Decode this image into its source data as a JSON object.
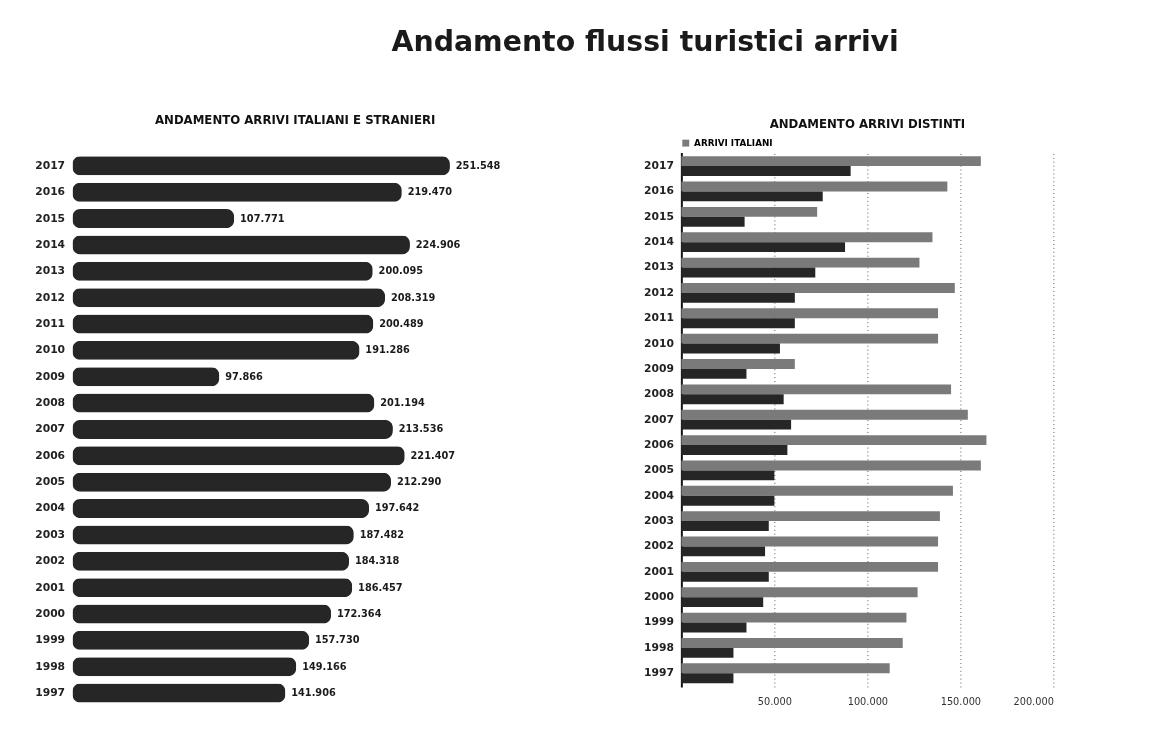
{
  "chart_data": [
    {
      "type": "other",
      "title": "Andamento flussi turistici arrivi"
    },
    {
      "type": "bar",
      "orientation": "horizontal",
      "title": "ANDAMENTO  ARRIVI ITALIANI E STRANIERI",
      "tick_labels": "y",
      "color": "#262626",
      "categories": [
        "2017",
        "2016",
        "2015",
        "2014",
        "2013",
        "2012",
        "2011",
        "2010",
        "2009",
        "2008",
        "2007",
        "2006",
        "2005",
        "2004",
        "2003",
        "2002",
        "2001",
        "2000",
        "1999",
        "1998",
        "1997"
      ],
      "values": [
        251548,
        219470,
        107771,
        224906,
        200095,
        208319,
        200489,
        191286,
        97866,
        201194,
        213536,
        221407,
        212290,
        197642,
        187482,
        184318,
        186457,
        172364,
        157730,
        149166,
        141906
      ],
      "value_labels": [
        "251.548",
        "219.470",
        "107.771",
        "224.906",
        "200.095",
        "208.319",
        "200.489",
        "191.286",
        "97.866",
        "201.194",
        "213.536",
        "221.407",
        "212.290",
        "197.642",
        "187.482",
        "184.318",
        "186.457",
        "172.364",
        "157.730",
        "149.166",
        "141.906"
      ]
    },
    {
      "type": "bar",
      "orientation": "horizontal",
      "title": "ANDAMENTO ARRIVI DISTINTI",
      "legend": "top",
      "grid": "x",
      "categories": [
        "2017",
        "2016",
        "2015",
        "2014",
        "2013",
        "2012",
        "2011",
        "2010",
        "2009",
        "2008",
        "2007",
        "2006",
        "2005",
        "2004",
        "2003",
        "2002",
        "2001",
        "2000",
        "1999",
        "1998",
        "1997"
      ],
      "xlim": [
        0,
        200000
      ],
      "xticks": [
        {
          "value": 50000,
          "label": "50.000"
        },
        {
          "value": 100000,
          "label": "100.000"
        },
        {
          "value": 150000,
          "label": "150.000"
        },
        {
          "value": 200000,
          "label": "200.000"
        }
      ],
      "series": [
        {
          "name": "ARRIVI ITALIANI",
          "color": "#7a7a7a",
          "values": [
            161000,
            143000,
            73000,
            135000,
            128000,
            147000,
            138000,
            138000,
            61000,
            145000,
            154000,
            164000,
            161000,
            146000,
            139000,
            138000,
            138000,
            127000,
            121000,
            119000,
            112000
          ]
        },
        {
          "color": "#262626",
          "values": [
            91000,
            76000,
            34000,
            88000,
            72000,
            61000,
            61000,
            53000,
            35000,
            55000,
            59000,
            57000,
            50000,
            50000,
            47000,
            45000,
            47000,
            44000,
            35000,
            28000,
            28000
          ]
        }
      ]
    }
  ]
}
